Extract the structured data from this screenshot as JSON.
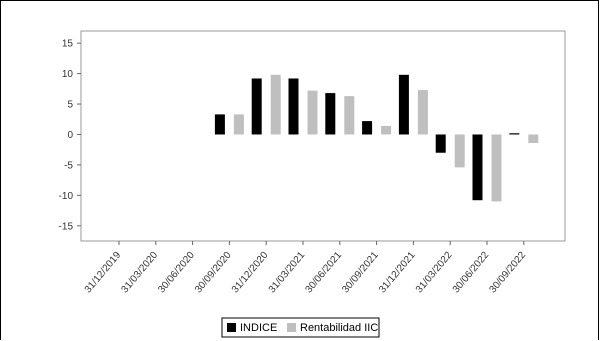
{
  "chart_data": {
    "type": "bar",
    "categories": [
      "31/12/2019",
      "31/03/2020",
      "30/06/2020",
      "30/09/2020",
      "31/12/2020",
      "31/03/2021",
      "30/06/2021",
      "30/09/2021",
      "31/12/2021",
      "31/03/2022",
      "30/06/2022",
      "30/09/2022"
    ],
    "series": [
      {
        "name": "INDICE",
        "color": "#000000",
        "values": [
          null,
          null,
          null,
          3.3,
          9.2,
          9.2,
          6.8,
          2.2,
          9.8,
          -3.0,
          -10.8,
          0.2
        ]
      },
      {
        "name": "Rentabilidad IIC",
        "color": "#bfbfbf",
        "values": [
          null,
          null,
          null,
          3.3,
          9.8,
          7.2,
          6.3,
          1.4,
          7.3,
          -5.4,
          -11.0,
          -1.4
        ]
      }
    ],
    "ylim": [
      -17.5,
      17
    ],
    "yticks": [
      15,
      10,
      5,
      0,
      -5,
      -10,
      -15
    ],
    "legend_position": "bottom-center",
    "grid": false
  }
}
